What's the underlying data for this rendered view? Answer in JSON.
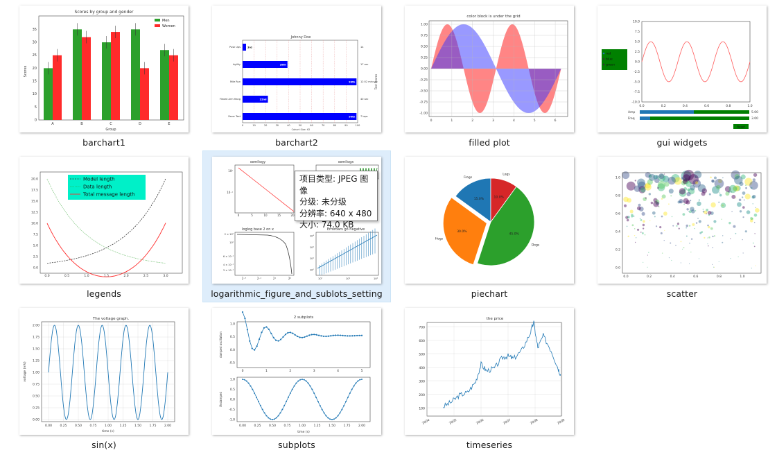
{
  "files": [
    {
      "name": "barchart1"
    },
    {
      "name": "barchart2"
    },
    {
      "name": "filled plot"
    },
    {
      "name": "gui widgets"
    },
    {
      "name": "legends"
    },
    {
      "name": "logarithmic_figure_and_sublots_setting"
    },
    {
      "name": "piechart"
    },
    {
      "name": "scatter"
    },
    {
      "name": "sin(x)"
    },
    {
      "name": "subplots"
    },
    {
      "name": "timeseries"
    }
  ],
  "tooltip": {
    "type": "项目类型: JPEG 图像",
    "rating": "分级: 未分级",
    "resolution": "分辨率: 640 x 480",
    "size": "大小: 74.0 KB"
  },
  "thumbs": {
    "barchart1": {
      "title": "Scores by group and gender",
      "xlabel": "Group",
      "ylabel": "Scores",
      "legend": [
        "Men",
        "Women"
      ],
      "categories": [
        "A",
        "B",
        "C",
        "D",
        "E"
      ],
      "men": [
        20,
        35,
        30,
        35,
        27
      ],
      "women": [
        25,
        32,
        34,
        20,
        25
      ],
      "yticks": [
        "0",
        "5",
        "10",
        "15",
        "20",
        "25",
        "30",
        "35"
      ]
    },
    "barchart2": {
      "title": "Johnny Doe",
      "rows": [
        "Push Ups",
        "Agility",
        "Mile Run",
        "Flexed Arm Hang",
        "Pacer Test"
      ],
      "row_labels": [
        "3rd",
        "39th",
        "99th",
        "22nd",
        "99th"
      ],
      "values": [
        3,
        39,
        99,
        22,
        99
      ],
      "right": [
        "14",
        "17 sec",
        "12:52 min:sec",
        "40 sec",
        "7 laps"
      ],
      "xticks": [
        "0",
        "10",
        "20",
        "30",
        "40",
        "50",
        "60",
        "70",
        "80",
        "90",
        "100"
      ],
      "xlabel": "Cohort Size: 62",
      "ylabel2": "Test Scores"
    },
    "filled": {
      "title": "color block is under the grid",
      "yticks": [
        "1.00",
        "0.75",
        "0.50",
        "0.25",
        "0.00",
        "-0.25",
        "-0.50",
        "-0.75",
        "-1.00"
      ],
      "xticks": [
        "0",
        "1",
        "2",
        "3",
        "4",
        "5",
        "6"
      ]
    },
    "gui": {
      "radio": [
        "red",
        "blue",
        "green"
      ],
      "yticks": [
        "10.0",
        "7.5",
        "5.0",
        "2.5",
        "0.0",
        "-2.5",
        "-5.0",
        "-7.5",
        "-10.0"
      ],
      "xticks": [
        "0.0",
        "0.2",
        "0.4",
        "0.6",
        "0.8",
        "1.0"
      ],
      "amp_label": "Amp",
      "amp_value": "5.00",
      "freq_label": "Freq",
      "freq_value": "3.00",
      "reset": "Reset"
    },
    "legends": {
      "legend": [
        "Model length",
        "Data length",
        "Total message length"
      ],
      "yticks": [
        "20.0",
        "17.5",
        "15.0",
        "12.5",
        "10.0",
        "7.5",
        "5.0",
        "2.5",
        "0.0"
      ],
      "xticks": [
        "0.0",
        "0.5",
        "1.0",
        "1.5",
        "2.0",
        "2.5",
        "3.0"
      ]
    },
    "log": {
      "titles": [
        "semilogy",
        "semilogx",
        "loglog base 2 on x",
        "Errorbars go negative"
      ],
      "ticks_a": [
        "10⁰",
        "10⁻¹"
      ],
      "ticks_a_x": [
        "0",
        "5",
        "10",
        "15",
        "20"
      ],
      "ticks_c_y": [
        "2 × 10⁰",
        "10⁰",
        "6 × 10⁻¹",
        "4 × 10⁻¹",
        "3 × 10⁻¹"
      ],
      "ticks_c_x": [
        "2⁻⁵",
        "2⁻²",
        "2¹",
        "2⁴"
      ],
      "ticks_d_y": [
        "10³",
        "10²",
        "10¹",
        "10⁰"
      ],
      "ticks_d_x": [
        "10⁰",
        "10¹",
        "10²"
      ]
    },
    "pie": {
      "labels": [
        "Frogs",
        "Hogs",
        "Dogs",
        "Logs"
      ],
      "pcts": [
        "15.0%",
        "30.0%",
        "45.0%",
        "10.0%"
      ],
      "values": [
        15,
        30,
        45,
        10
      ],
      "colors": [
        "#1f77b4",
        "#ff7f0e",
        "#2ca02c",
        "#d62728"
      ]
    },
    "scatter": {
      "yticks": [
        "1.0",
        "0.8",
        "0.6",
        "0.4",
        "0.2",
        "0.0"
      ],
      "xticks": [
        "0.0",
        "0.2",
        "0.4",
        "0.6",
        "0.8",
        "1.0"
      ]
    },
    "sinx": {
      "title": "The voltage graph.",
      "ylabel": "voltage (mV)",
      "xlabel": "time (s)",
      "yticks": [
        "2.00",
        "1.75",
        "1.50",
        "1.25",
        "1.00",
        "0.75",
        "0.50",
        "0.25",
        "0.00"
      ],
      "xticks": [
        "0.00",
        "0.25",
        "0.50",
        "0.75",
        "1.00",
        "1.25",
        "1.50",
        "1.75",
        "2.00"
      ]
    },
    "subplots": {
      "title": "2 subplots",
      "ylabel1": "damped oscillation",
      "ylabel2": "Undamped",
      "xlabel": "time (s)",
      "top_yticks": [
        "1.0",
        "0.5",
        "0.0",
        "-0.5"
      ],
      "top_xticks": [
        "0",
        "1",
        "2",
        "3",
        "4",
        "5"
      ],
      "bot_yticks": [
        "1.0",
        "0.5",
        "0.0",
        "-0.5",
        "-1.0"
      ],
      "bot_xticks": [
        "0.00",
        "0.25",
        "0.50",
        "0.75",
        "1.00",
        "1.25",
        "1.50",
        "1.75",
        "2.00"
      ]
    },
    "timeseries": {
      "title": "the price",
      "yticks": [
        "700",
        "600",
        "500",
        "400",
        "300",
        "200",
        "100"
      ],
      "xticks": [
        "2004",
        "2005",
        "2006",
        "2007",
        "2008",
        "2009"
      ]
    }
  }
}
